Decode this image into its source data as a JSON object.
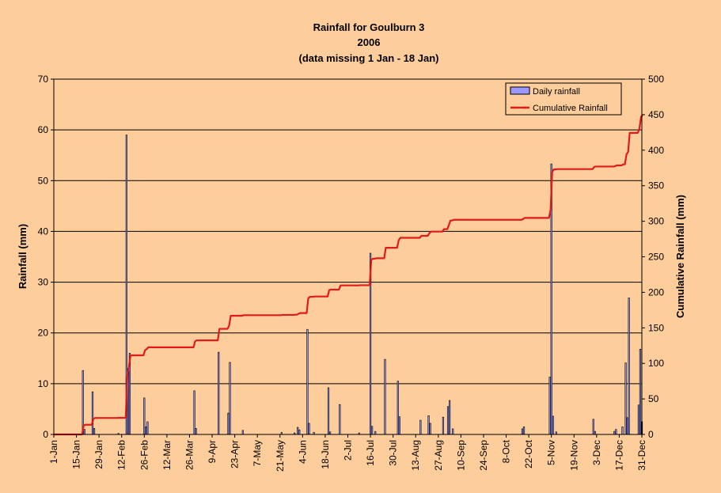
{
  "chart_data": {
    "type": "bar+line",
    "title": [
      "Rainfall for Goulburn 3",
      "2006",
      "(data missing 1 Jan - 18 Jan)"
    ],
    "ylabel": "Rainfall (mm)",
    "y2label": "Cumulative Rainfall (mm)",
    "ylim": [
      0,
      70
    ],
    "y2lim": [
      0,
      500
    ],
    "yticks": [
      "0",
      "10",
      "20",
      "30",
      "40",
      "50",
      "60",
      "70"
    ],
    "y2ticks": [
      "0",
      "50",
      "100",
      "150",
      "200",
      "250",
      "300",
      "350",
      "400",
      "450",
      "500"
    ],
    "xlim_days": [
      1,
      365
    ],
    "xticks": [
      {
        "label": "1-Jan",
        "day": 1
      },
      {
        "label": "15-Jan",
        "day": 15
      },
      {
        "label": "29-Jan",
        "day": 29
      },
      {
        "label": "12-Feb",
        "day": 43
      },
      {
        "label": "26-Feb",
        "day": 57
      },
      {
        "label": "12-Mar",
        "day": 71
      },
      {
        "label": "26-Mar",
        "day": 85
      },
      {
        "label": "9-Apr",
        "day": 99
      },
      {
        "label": "23-Apr",
        "day": 113
      },
      {
        "label": "7-May",
        "day": 127
      },
      {
        "label": "21-May",
        "day": 141
      },
      {
        "label": "4-Jun",
        "day": 155
      },
      {
        "label": "18-Jun",
        "day": 169
      },
      {
        "label": "2-Jul",
        "day": 183
      },
      {
        "label": "16-Jul",
        "day": 197
      },
      {
        "label": "30-Jul",
        "day": 211
      },
      {
        "label": "13-Aug",
        "day": 225
      },
      {
        "label": "27-Aug",
        "day": 239
      },
      {
        "label": "10-Sep",
        "day": 253
      },
      {
        "label": "24-Sep",
        "day": 267
      },
      {
        "label": "8-Oct",
        "day": 281
      },
      {
        "label": "22-Oct",
        "day": 295
      },
      {
        "label": "5-Nov",
        "day": 309
      },
      {
        "label": "19-Nov",
        "day": 323
      },
      {
        "label": "3-Dec",
        "day": 337
      },
      {
        "label": "17-Dec",
        "day": 351
      },
      {
        "label": "31-Dec",
        "day": 365
      }
    ],
    "series": [
      {
        "name": "Daily rainfall",
        "type": "bar",
        "color": "#9999ff",
        "points": [
          [
            19,
            12.6
          ],
          [
            20,
            1.0
          ],
          [
            25,
            8.4
          ],
          [
            26,
            1.2
          ],
          [
            41,
            0.2
          ],
          [
            46,
            59
          ],
          [
            47,
            13
          ],
          [
            48,
            16
          ],
          [
            57,
            7.2
          ],
          [
            58,
            1.5
          ],
          [
            59,
            2.5
          ],
          [
            88,
            8.6
          ],
          [
            89,
            1.2
          ],
          [
            103,
            16.2
          ],
          [
            109,
            4.2
          ],
          [
            110,
            14.2
          ],
          [
            118,
            0.8
          ],
          [
            142,
            0.4
          ],
          [
            150,
            0.3
          ],
          [
            152,
            1.4
          ],
          [
            153,
            0.9
          ],
          [
            158,
            20.7
          ],
          [
            159,
            2.2
          ],
          [
            162,
            0.4
          ],
          [
            171,
            9.2
          ],
          [
            172,
            0.5
          ],
          [
            178,
            5.9
          ],
          [
            190,
            0.3
          ],
          [
            197,
            35.7
          ],
          [
            198,
            1.6
          ],
          [
            200,
            0.6
          ],
          [
            206,
            14.8
          ],
          [
            214,
            10.5
          ],
          [
            215,
            3.5
          ],
          [
            228,
            2.8
          ],
          [
            233,
            3.7
          ],
          [
            234,
            2.2
          ],
          [
            242,
            3.4
          ],
          [
            245,
            5.5
          ],
          [
            246,
            6.7
          ],
          [
            248,
            1.1
          ],
          [
            291,
            1.1
          ],
          [
            292,
            1.5
          ],
          [
            308,
            11.3
          ],
          [
            309,
            53.3
          ],
          [
            310,
            3.6
          ],
          [
            312,
            0.5
          ],
          [
            335,
            3.0
          ],
          [
            336,
            0.6
          ],
          [
            348,
            0.6
          ],
          [
            349,
            1.0
          ],
          [
            353,
            1.5
          ],
          [
            355,
            14.1
          ],
          [
            356,
            3.3
          ],
          [
            357,
            26.9
          ],
          [
            363,
            5.8
          ],
          [
            364,
            16.8
          ],
          [
            365,
            2.5
          ]
        ]
      },
      {
        "name": "Cumulative Rainfall",
        "type": "step",
        "color": "#e11b1b",
        "points": [
          [
            1,
            0
          ],
          [
            18,
            0
          ],
          [
            19,
            12.6
          ],
          [
            20,
            13.6
          ],
          [
            25,
            22
          ],
          [
            26,
            23.2
          ],
          [
            41,
            23.4
          ],
          [
            46,
            82.4
          ],
          [
            47,
            95.4
          ],
          [
            48,
            111.4
          ],
          [
            57,
            118.6
          ],
          [
            58,
            120.1
          ],
          [
            59,
            122.6
          ],
          [
            88,
            131.2
          ],
          [
            89,
            132.4
          ],
          [
            103,
            148.6
          ],
          [
            109,
            152.8
          ],
          [
            110,
            167
          ],
          [
            118,
            167.8
          ],
          [
            142,
            168.2
          ],
          [
            150,
            168.5
          ],
          [
            152,
            169.9
          ],
          [
            153,
            170.8
          ],
          [
            158,
            191.5
          ],
          [
            159,
            193.7
          ],
          [
            162,
            194.1
          ],
          [
            171,
            203.3
          ],
          [
            172,
            203.8
          ],
          [
            178,
            209.7
          ],
          [
            190,
            210
          ],
          [
            197,
            245.7
          ],
          [
            198,
            247.3
          ],
          [
            200,
            247.9
          ],
          [
            206,
            262.7
          ],
          [
            214,
            273.2
          ],
          [
            215,
            276.7
          ],
          [
            228,
            279.5
          ],
          [
            233,
            283.2
          ],
          [
            234,
            285.4
          ],
          [
            242,
            288.8
          ],
          [
            245,
            294.3
          ],
          [
            246,
            301
          ],
          [
            248,
            302.1
          ],
          [
            291,
            303.2
          ],
          [
            292,
            304.7
          ],
          [
            308,
            316
          ],
          [
            309,
            369.3
          ],
          [
            310,
            372.9
          ],
          [
            312,
            373.4
          ],
          [
            335,
            376.4
          ],
          [
            336,
            377
          ],
          [
            348,
            377.6
          ],
          [
            349,
            378.6
          ],
          [
            353,
            380.1
          ],
          [
            355,
            394.2
          ],
          [
            356,
            397.5
          ],
          [
            357,
            424.4
          ],
          [
            363,
            430.2
          ],
          [
            364,
            447
          ],
          [
            365,
            449.5
          ]
        ]
      }
    ],
    "grid": "horizontal",
    "legend": "top-right"
  }
}
